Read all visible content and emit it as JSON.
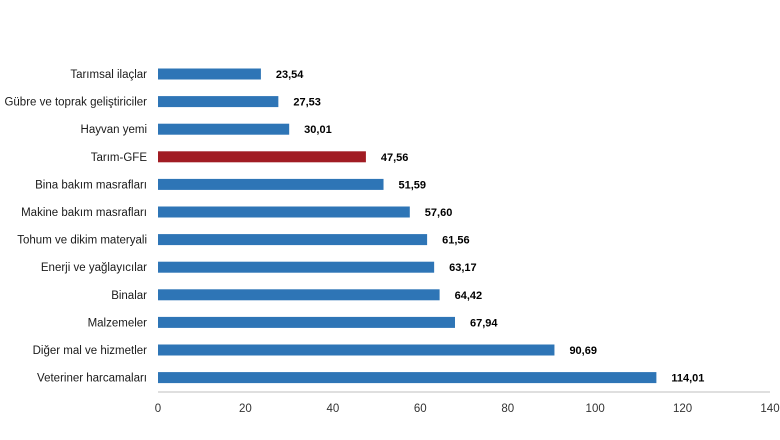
{
  "chart_data": {
    "type": "bar",
    "orientation": "horizontal",
    "title": "",
    "xlabel": "",
    "ylabel": "",
    "xlim": [
      0,
      140
    ],
    "x_ticks": [
      0,
      20,
      40,
      60,
      80,
      100,
      120,
      140
    ],
    "grid": false,
    "categories": [
      "Tarımsal ilaçlar",
      "Gübre ve toprak geliştiriciler",
      "Hayvan yemi",
      "Tarım-GFE",
      "Bina bakım masrafları",
      "Makine bakım masrafları",
      "Tohum ve dikim materyali",
      "Enerji  ve yağlayıcılar",
      "Binalar",
      "Malzemeler",
      "Diğer mal ve hizmetler",
      "Veteriner harcamaları"
    ],
    "values": [
      23.54,
      27.53,
      30.01,
      47.56,
      51.59,
      57.6,
      61.56,
      63.17,
      64.42,
      67.94,
      90.69,
      114.01
    ],
    "value_labels": [
      "23,54",
      "27,53",
      "30,01",
      "47,56",
      "51,59",
      "57,60",
      "61,56",
      "63,17",
      "64,42",
      "67,94",
      "90,69",
      "114,01"
    ],
    "colors": {
      "default": "#2e75b6",
      "highlight": "#a11c23",
      "axis": "#bfbfbf"
    },
    "highlight_category": "Tarım-GFE"
  }
}
